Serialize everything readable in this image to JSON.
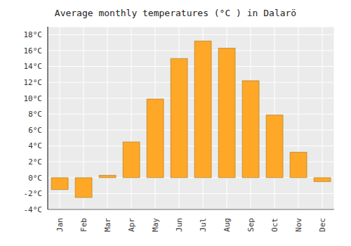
{
  "chart_data": {
    "type": "bar",
    "title": "Average monthly temperatures (°C ) in Dalarö",
    "categories": [
      "Jan",
      "Feb",
      "Mar",
      "Apr",
      "May",
      "Jun",
      "Jul",
      "Aug",
      "Sep",
      "Oct",
      "Nov",
      "Dec"
    ],
    "values": [
      -1.5,
      -2.5,
      0.3,
      4.5,
      9.9,
      15.0,
      17.2,
      16.3,
      12.2,
      7.9,
      3.2,
      -0.5
    ],
    "color": "#FFA726",
    "ylim": [
      -4,
      19
    ],
    "yticks": [
      {
        "value": -4,
        "label": "-4°C"
      },
      {
        "value": -2,
        "label": "-2°C"
      },
      {
        "value": 0,
        "label": "0°C"
      },
      {
        "value": 2,
        "label": "2°C"
      },
      {
        "value": 4,
        "label": "4°C"
      },
      {
        "value": 6,
        "label": "6°C"
      },
      {
        "value": 8,
        "label": "8°C"
      },
      {
        "value": 10,
        "label": "10°C"
      },
      {
        "value": 12,
        "label": "12°C"
      },
      {
        "value": 14,
        "label": "14°C"
      },
      {
        "value": 16,
        "label": "16°C"
      },
      {
        "value": 18,
        "label": "18°C"
      }
    ],
    "grid": true
  }
}
